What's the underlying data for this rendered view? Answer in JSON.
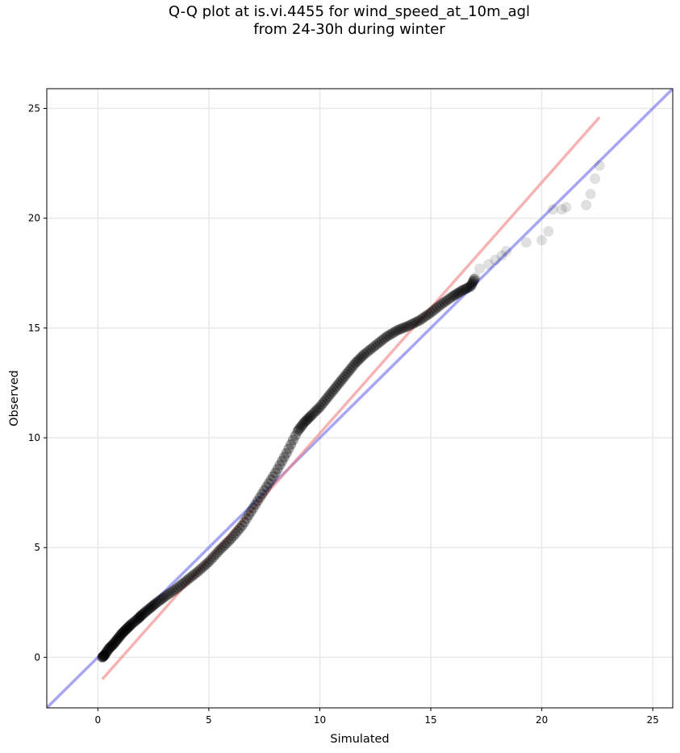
{
  "chart_data": {
    "type": "scatter",
    "title_line1": "Q-Q plot at is.vi.4455 for wind_speed_at_10m_agl",
    "title_line2": "from 24-30h during winter",
    "xlabel": "Simulated",
    "ylabel": "Observed",
    "xlim": [
      -2.3,
      25.9
    ],
    "ylim": [
      -2.3,
      25.9
    ],
    "xticks": [
      "0",
      "5",
      "10",
      "15",
      "20",
      "25"
    ],
    "yticks": [
      "0",
      "5",
      "10",
      "15",
      "20",
      "25"
    ],
    "grid": true,
    "colors": {
      "points": "#000000",
      "identity_line": "#6a6aee",
      "fit_line": "#f08080"
    },
    "identity_line": {
      "x": [
        -2.3,
        25.9
      ],
      "y": [
        -2.3,
        25.9
      ]
    },
    "fit_line": {
      "x": [
        0.2,
        22.6
      ],
      "y": [
        -1.0,
        24.6
      ]
    },
    "quantiles": {
      "x": [
        0.2,
        0.3,
        0.5,
        0.7,
        0.9,
        1.1,
        1.3,
        1.5,
        1.8,
        2.0,
        2.3,
        2.6,
        3.0,
        3.5,
        4.0,
        4.5,
        5.0,
        5.5,
        6.0,
        6.5,
        7.0,
        7.5,
        8.0,
        8.5,
        9.0,
        9.3,
        9.6,
        10.0,
        10.4,
        10.8,
        11.2,
        11.6,
        12.0,
        12.5,
        13.0,
        13.5,
        14.0,
        14.5,
        15.0,
        15.5,
        16.0,
        16.4,
        16.8,
        17.0,
        17.2,
        17.6,
        17.9,
        18.2,
        18.4,
        19.3,
        20.0,
        20.3,
        20.5,
        20.9,
        21.1,
        22.0,
        22.2,
        22.4,
        22.6
      ],
      "y": [
        0.0,
        0.1,
        0.4,
        0.6,
        0.85,
        1.1,
        1.3,
        1.5,
        1.75,
        1.95,
        2.2,
        2.45,
        2.75,
        3.1,
        3.5,
        3.9,
        4.35,
        4.9,
        5.4,
        6.0,
        6.8,
        7.6,
        8.4,
        9.3,
        10.3,
        10.7,
        11.0,
        11.4,
        11.9,
        12.4,
        12.9,
        13.4,
        13.8,
        14.2,
        14.6,
        14.9,
        15.1,
        15.35,
        15.7,
        16.1,
        16.45,
        16.7,
        16.9,
        17.3,
        17.7,
        17.9,
        18.1,
        18.3,
        18.5,
        18.9,
        19.0,
        19.4,
        20.4,
        20.4,
        20.5,
        20.6,
        21.1,
        21.8,
        22.4
      ]
    }
  }
}
